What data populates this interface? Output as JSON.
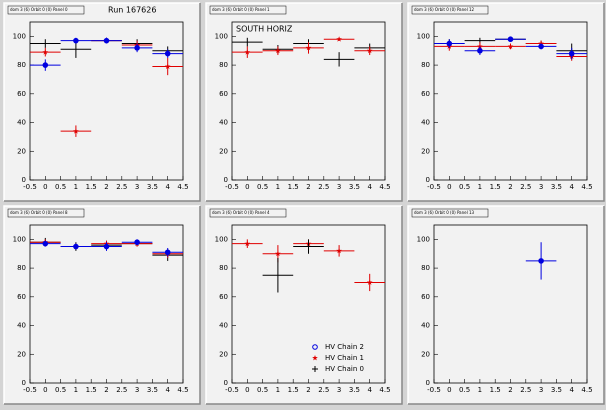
{
  "chart_data": [
    {
      "type": "errorbar",
      "title": "dom 3 (6) Orbit 0 (0) Panel 0",
      "annotation": "Run 167626",
      "x": [
        0,
        1,
        2,
        3,
        4
      ],
      "xerr": 0.5,
      "xlim": [
        -0.5,
        4.5
      ],
      "ylim": [
        0,
        110
      ],
      "xticks": [
        -0.5,
        0,
        0.5,
        1,
        1.5,
        2,
        2.5,
        3,
        3.5,
        4,
        4.5
      ],
      "yticks": [
        0,
        20,
        40,
        60,
        80,
        100
      ],
      "series": [
        {
          "color": "#000000",
          "marker": "none",
          "values": [
            95,
            91,
            97,
            95,
            90
          ],
          "errors": [
            3,
            6,
            2,
            3,
            3
          ]
        },
        {
          "color": "#e00000",
          "marker": "star",
          "values": [
            89,
            34,
            97,
            94,
            79
          ],
          "errors": [
            3,
            4,
            2,
            3,
            6
          ]
        },
        {
          "color": "#0000e0",
          "marker": "circle",
          "values": [
            80,
            97,
            97,
            92,
            88
          ],
          "errors": [
            4,
            2,
            2,
            3,
            3
          ]
        }
      ]
    },
    {
      "type": "errorbar",
      "title": "dom 3 (6) Orbit 0 (0) Panel 1",
      "annotation": "SOUTH HORIZ",
      "x": [
        0,
        1,
        2,
        3,
        4
      ],
      "xerr": 0.5,
      "xlim": [
        -0.5,
        4.5
      ],
      "ylim": [
        0,
        110
      ],
      "xticks": [
        -0.5,
        0,
        0.5,
        1,
        1.5,
        2,
        2.5,
        3,
        3.5,
        4,
        4.5
      ],
      "yticks": [
        0,
        20,
        40,
        60,
        80,
        100
      ],
      "series": [
        {
          "color": "#000000",
          "marker": "none",
          "values": [
            96,
            91,
            95,
            84,
            92
          ],
          "errors": [
            3,
            3,
            3,
            5,
            3
          ]
        },
        {
          "color": "#e00000",
          "marker": "star",
          "values": [
            89,
            90,
            92,
            98,
            90
          ],
          "errors": [
            4,
            3,
            4,
            1,
            3
          ]
        }
      ]
    },
    {
      "type": "errorbar",
      "title": "dom 3 (6) Orbit 0 (0) Panel 12",
      "x": [
        0,
        1,
        2,
        3,
        4
      ],
      "xerr": 0.5,
      "xlim": [
        -0.5,
        4.5
      ],
      "ylim": [
        0,
        110
      ],
      "xticks": [
        -0.5,
        0,
        0.5,
        1,
        1.5,
        2,
        2.5,
        3,
        3.5,
        4,
        4.5
      ],
      "yticks": [
        0,
        20,
        40,
        60,
        80,
        100
      ],
      "series": [
        {
          "color": "#000000",
          "marker": "none",
          "values": [
            95,
            97,
            98,
            95,
            90
          ],
          "errors": [
            3,
            2,
            1,
            2,
            5
          ]
        },
        {
          "color": "#e00000",
          "marker": "star",
          "values": [
            93,
            93,
            93,
            95,
            86
          ],
          "errors": [
            3,
            3,
            2,
            2,
            3
          ]
        },
        {
          "color": "#0000e0",
          "marker": "circle",
          "values": [
            95,
            90,
            98,
            93,
            88
          ],
          "errors": [
            3,
            3,
            1,
            2,
            4
          ]
        }
      ]
    },
    {
      "type": "errorbar",
      "title": "dom 3 (6) Orbit 0 (0) Panel 8",
      "x": [
        0,
        1,
        2,
        3,
        4
      ],
      "xerr": 0.5,
      "xlim": [
        -0.5,
        4.5
      ],
      "ylim": [
        0,
        110
      ],
      "xticks": [
        -0.5,
        0,
        0.5,
        1,
        1.5,
        2,
        2.5,
        3,
        3.5,
        4,
        4.5
      ],
      "yticks": [
        0,
        20,
        40,
        60,
        80,
        100
      ],
      "series": [
        {
          "color": "#000000",
          "marker": "none",
          "values": [
            98,
            95,
            96,
            97,
            89
          ],
          "errors": [
            3,
            3,
            3,
            2,
            4
          ]
        },
        {
          "color": "#e00000",
          "marker": "star",
          "values": [
            98,
            95,
            97,
            97,
            90
          ],
          "errors": [
            2,
            2,
            2,
            2,
            3
          ]
        },
        {
          "color": "#0000e0",
          "marker": "circle",
          "values": [
            97,
            95,
            95,
            98,
            91
          ],
          "errors": [
            2,
            2,
            3,
            2,
            3
          ]
        }
      ]
    },
    {
      "type": "errorbar",
      "title": "dom 3 (6) Orbit 0 (0) Panel 4",
      "legend": true,
      "x": [
        0,
        1,
        2,
        3,
        4
      ],
      "xerr": 0.5,
      "xlim": [
        -0.5,
        4.5
      ],
      "ylim": [
        0,
        110
      ],
      "xticks": [
        -0.5,
        0,
        0.5,
        1,
        1.5,
        2,
        2.5,
        3,
        3.5,
        4,
        4.5
      ],
      "yticks": [
        0,
        20,
        40,
        60,
        80,
        100
      ],
      "series": [
        {
          "name": "HV Chain 2",
          "color": "#0000e0",
          "marker": "circle",
          "values": [
            null,
            null,
            null,
            null,
            null
          ],
          "errors": [
            null,
            null,
            null,
            null,
            null
          ]
        },
        {
          "name": "HV Chain 1",
          "color": "#e00000",
          "marker": "star",
          "values": [
            97,
            90,
            97,
            92,
            70
          ],
          "errors": [
            3,
            6,
            3,
            4,
            6
          ]
        },
        {
          "name": "HV Chain 0",
          "color": "#000000",
          "marker": "none",
          "values": [
            null,
            75,
            95,
            null,
            null
          ],
          "errors": [
            null,
            12,
            5,
            null,
            null
          ]
        }
      ]
    },
    {
      "type": "errorbar",
      "title": "dom 3 (6) Orbit 0 (0) Panel 13",
      "x": [
        0,
        1,
        2,
        3,
        4
      ],
      "xerr": 0.5,
      "xlim": [
        -0.5,
        4.5
      ],
      "ylim": [
        0,
        110
      ],
      "xticks": [
        -0.5,
        0,
        0.5,
        1,
        1.5,
        2,
        2.5,
        3,
        3.5,
        4,
        4.5
      ],
      "yticks": [
        0,
        20,
        40,
        60,
        80,
        100
      ],
      "series": [
        {
          "color": "#0000e0",
          "marker": "circle",
          "values": [
            null,
            null,
            null,
            85,
            null
          ],
          "errors": [
            null,
            null,
            null,
            13,
            null
          ]
        }
      ]
    }
  ]
}
